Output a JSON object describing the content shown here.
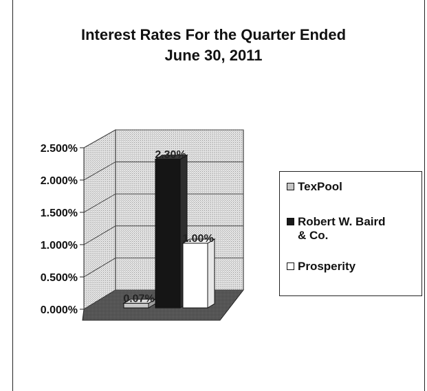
{
  "chart_data": {
    "type": "bar",
    "title": "Interest Rates For the Quarter Ended",
    "subtitle": "June 30, 2011",
    "categories": [
      "TexPool",
      "Robert W. Baird & Co.",
      "Prosperity"
    ],
    "values": [
      0.07,
      2.3,
      1.0
    ],
    "data_labels": [
      "0.07%",
      "2.30%",
      "1.00%"
    ],
    "ylim": [
      0,
      2.5
    ],
    "yticks": [
      "0.000%",
      "0.500%",
      "1.000%",
      "1.500%",
      "2.000%",
      "2.500%"
    ],
    "grid": true,
    "legend_position": "right",
    "colors": {
      "TexPool": "#b8b8b8",
      "Robert W. Baird & Co.": "#1a1a1a",
      "Prosperity": "#ffffff"
    }
  },
  "legend": {
    "items": [
      {
        "label": "TexPool",
        "color": "#b8b8b8"
      },
      {
        "label_line1": "Robert W. Baird",
        "label_line2": "& Co.",
        "color": "#1a1a1a"
      },
      {
        "label": "Prosperity",
        "color": "#ffffff"
      }
    ]
  }
}
